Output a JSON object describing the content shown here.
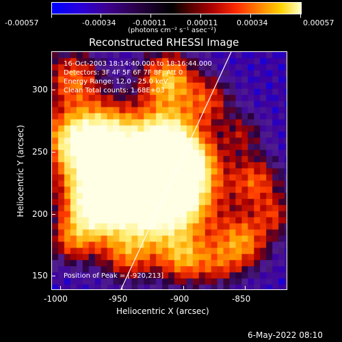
{
  "colorbar": {
    "tick_labels": [
      "-0.00057",
      "-0.00034",
      "-0.00011",
      "0.00011",
      "0.00034",
      "0.00057"
    ],
    "unit_label": "(photons cm⁻² s⁻¹ asec⁻²)"
  },
  "plot": {
    "title": "Reconstructed RHESSI Image",
    "info_lines": [
      "16-Oct-2003 18:14:40.000 to 18:16:44.000",
      "Detectors: 3F 4F 5F 6F 7F 8F, Att 0",
      "Energy Range: 12.0 - 25.0 keV",
      "Clean     Total counts: 1.68E+03"
    ],
    "peak_label": "Position of Peak = [-920,213]",
    "xlabel": "Heliocentric X (arcsec)",
    "ylabel": "Heliocentric Y (arcsec)",
    "x_ticks": [
      "-1000",
      "-950",
      "-900",
      "-850"
    ],
    "y_ticks": [
      "150",
      "200",
      "250",
      "300"
    ]
  },
  "footer": {
    "date": "6-May-2022 08:10"
  },
  "colors": {
    "background": "#000000",
    "text": "#ffffff"
  }
}
